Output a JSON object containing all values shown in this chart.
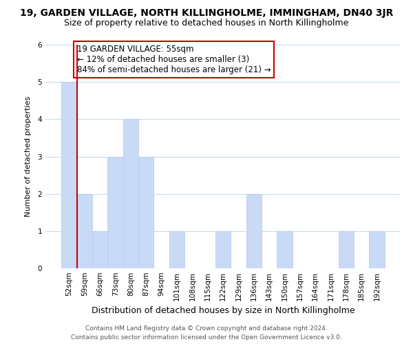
{
  "title": "19, GARDEN VILLAGE, NORTH KILLINGHOLME, IMMINGHAM, DN40 3JR",
  "subtitle": "Size of property relative to detached houses in North Killingholme",
  "xlabel": "Distribution of detached houses by size in North Killingholme",
  "ylabel": "Number of detached properties",
  "categories": [
    "52sqm",
    "59sqm",
    "66sqm",
    "73sqm",
    "80sqm",
    "87sqm",
    "94sqm",
    "101sqm",
    "108sqm",
    "115sqm",
    "122sqm",
    "129sqm",
    "136sqm",
    "143sqm",
    "150sqm",
    "157sqm",
    "164sqm",
    "171sqm",
    "178sqm",
    "185sqm",
    "192sqm"
  ],
  "values": [
    5,
    2,
    1,
    3,
    4,
    3,
    0,
    1,
    0,
    0,
    1,
    0,
    2,
    0,
    1,
    0,
    0,
    0,
    1,
    0,
    1
  ],
  "bar_color": "#c8daf5",
  "bar_edge_color": "#b8c8e8",
  "annotation_title": "19 GARDEN VILLAGE: 55sqm",
  "annotation_line1": "← 12% of detached houses are smaller (3)",
  "annotation_line2": "84% of semi-detached houses are larger (21) →",
  "annotation_box_color": "#ffffff",
  "annotation_border_color": "#cc0000",
  "redline_x": 0.5,
  "ylim": [
    0,
    6
  ],
  "yticks": [
    0,
    1,
    2,
    3,
    4,
    5,
    6
  ],
  "footer_line1": "Contains HM Land Registry data © Crown copyright and database right 2024.",
  "footer_line2": "Contains public sector information licensed under the Open Government Licence v3.0.",
  "bg_color": "#ffffff",
  "grid_color": "#c8daf5",
  "title_fontsize": 10,
  "subtitle_fontsize": 9,
  "xlabel_fontsize": 9,
  "ylabel_fontsize": 8,
  "tick_fontsize": 7.5,
  "footer_fontsize": 6.5,
  "annotation_fontsize": 8.5
}
